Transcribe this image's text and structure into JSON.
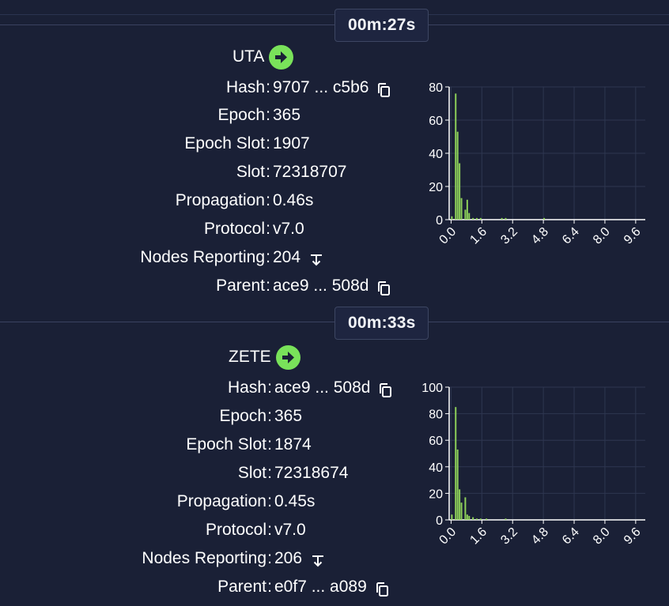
{
  "blocks": [
    {
      "timer": "00m:27s",
      "pool": "UTA",
      "rows": [
        {
          "label": "Hash",
          "value": "9707 ... c5b6",
          "icon": "copy-icon"
        },
        {
          "label": "Epoch",
          "value": "365"
        },
        {
          "label": "Epoch Slot",
          "value": "1907"
        },
        {
          "label": "Slot",
          "value": "72318707"
        },
        {
          "label": "Propagation",
          "value": "0.46s"
        },
        {
          "label": "Protocol",
          "value": "v7.0"
        },
        {
          "label": "Nodes Reporting",
          "value": "204",
          "icon": "expand-icon"
        },
        {
          "label": "Parent",
          "value": "ace9 ... 508d",
          "icon": "copy-icon"
        }
      ]
    },
    {
      "timer": "00m:33s",
      "pool": "ZETE",
      "rows": [
        {
          "label": "Hash",
          "value": "ace9 ... 508d",
          "icon": "copy-icon"
        },
        {
          "label": "Epoch",
          "value": "365"
        },
        {
          "label": "Epoch Slot",
          "value": "1874"
        },
        {
          "label": "Slot",
          "value": "72318674"
        },
        {
          "label": "Propagation",
          "value": "0.45s"
        },
        {
          "label": "Protocol",
          "value": "v7.0"
        },
        {
          "label": "Nodes Reporting",
          "value": "206",
          "icon": "expand-icon"
        },
        {
          "label": "Parent",
          "value": "e0f7 ... a089",
          "icon": "copy-icon"
        }
      ]
    }
  ],
  "colors": {
    "background": "#1a2036",
    "bar": "#8fd35a",
    "accent": "#79e25a",
    "grid": "#2e3650"
  },
  "chart_data": [
    {
      "type": "bar",
      "x_ticks": [
        "0.0",
        "1.6",
        "3.2",
        "4.8",
        "6.4",
        "8.0",
        "9.6"
      ],
      "y_ticks": [
        "0",
        "20",
        "40",
        "60",
        "80"
      ],
      "ylim": [
        0,
        80
      ],
      "xlim": [
        -0.1,
        10.1
      ],
      "x": [
        0.0,
        0.2,
        0.3,
        0.4,
        0.5,
        0.7,
        0.8,
        0.9,
        1.1,
        1.3,
        1.5,
        2.6,
        2.8,
        4.8
      ],
      "values": [
        2,
        76,
        53,
        34,
        13,
        6,
        12,
        4,
        1,
        1,
        1,
        1,
        1,
        1
      ]
    },
    {
      "type": "bar",
      "x_ticks": [
        "0.0",
        "1.6",
        "3.2",
        "4.8",
        "6.4",
        "8.0",
        "9.6"
      ],
      "y_ticks": [
        "0",
        "20",
        "40",
        "60",
        "80",
        "100"
      ],
      "ylim": [
        0,
        100
      ],
      "xlim": [
        -0.1,
        10.1
      ],
      "x": [
        0.0,
        0.2,
        0.3,
        0.4,
        0.5,
        0.7,
        0.8,
        0.9,
        1.1,
        1.3,
        1.5,
        1.8,
        2.8
      ],
      "values": [
        4,
        85,
        53,
        23,
        13,
        17,
        4,
        3,
        2,
        1,
        1,
        1,
        1
      ]
    }
  ]
}
